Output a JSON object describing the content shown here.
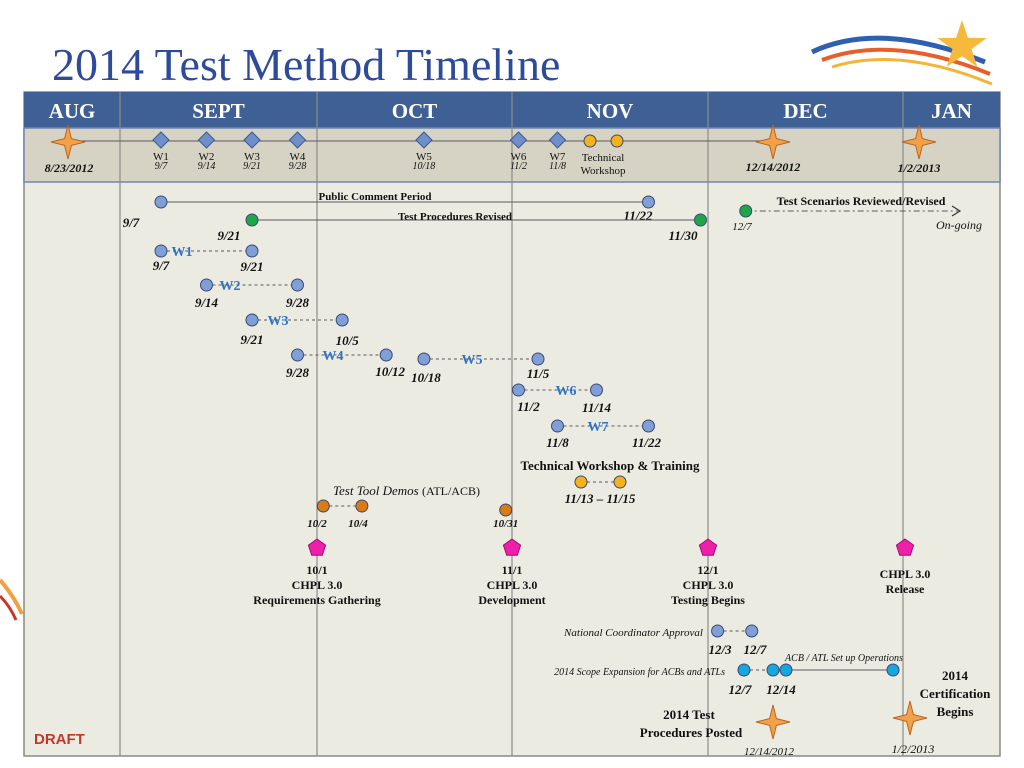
{
  "title": "2014 Test Method Timeline",
  "draft_label": "DRAFT",
  "colors": {
    "header_blue": "#3f6094",
    "panel_bg": "#ecebe2",
    "marker_blue": "#7f9fd6",
    "marker_green": "#1fa64a",
    "marker_orange": "#f5b21a",
    "marker_dark_orange": "#db7b14",
    "marker_magenta": "#ee1fa9",
    "marker_cyan": "#17a7e0",
    "label_blue": "#2f73c8"
  },
  "chart_data": {
    "type": "timeline",
    "months": [
      "AUG",
      "SEPT",
      "OCT",
      "NOV",
      "DEC",
      "JAN"
    ],
    "milestone_band": {
      "stars": [
        {
          "name": "star-start",
          "date": "8/23/2012"
        },
        {
          "name": "star-dec",
          "date": "12/14/2012"
        },
        {
          "name": "star-jan",
          "date": "1/2/2013"
        }
      ],
      "diamonds": [
        {
          "name": "W1",
          "date": "9/7"
        },
        {
          "name": "W2",
          "date": "9/14"
        },
        {
          "name": "W3",
          "date": "9/21"
        },
        {
          "name": "W4",
          "date": "9/28"
        },
        {
          "name": "W5",
          "date": "10/18"
        },
        {
          "name": "W6",
          "date": "11/2"
        },
        {
          "name": "W7",
          "date": "11/8"
        }
      ],
      "workshop_label": [
        "Technical",
        "Workshop"
      ]
    },
    "activities": [
      {
        "name": "Public Comment Period",
        "start": "9/7",
        "end": "11/22",
        "color": "blue",
        "label_style": "bold"
      },
      {
        "name": "Test Procedures Revised",
        "start": "9/21",
        "end": "11/30",
        "color": "green",
        "label_style": "bold"
      },
      {
        "name": "Test Scenarios Reviewed/Revised",
        "start": "12/7",
        "end": "On-going",
        "color": "green",
        "label_style": "bold"
      },
      {
        "name": "W1",
        "start": "9/7",
        "end": "9/21",
        "color": "blue",
        "label_style": "wave"
      },
      {
        "name": "W2",
        "start": "9/14",
        "end": "9/28",
        "color": "blue",
        "label_style": "wave"
      },
      {
        "name": "W3",
        "start": "9/21",
        "end": "10/5",
        "color": "blue",
        "label_style": "wave"
      },
      {
        "name": "W4",
        "start": "9/28",
        "end": "10/12",
        "color": "blue",
        "label_style": "wave"
      },
      {
        "name": "W5",
        "start": "10/18",
        "end": "11/5",
        "color": "blue",
        "label_style": "wave"
      },
      {
        "name": "W6",
        "start": "11/2",
        "end": "11/14",
        "color": "blue",
        "label_style": "wave"
      },
      {
        "name": "W7",
        "start": "11/8",
        "end": "11/22",
        "color": "blue",
        "label_style": "wave"
      },
      {
        "name": "Technical Workshop & Training",
        "start": "11/13",
        "end": "11/15",
        "color": "orange",
        "label_style": "bold",
        "date_text": "11/13 – 11/15"
      },
      {
        "name": "Test Tool Demos",
        "name_suffix": "(ATL/ACB)",
        "start": "10/2",
        "end": "10/4",
        "color": "dark-orange",
        "label_style": "italic"
      },
      {
        "name": "National Coordinator Approval",
        "start": "12/3",
        "end": "12/7",
        "color": "blue",
        "label_style": "italic"
      },
      {
        "name": "ACB / ATL Set up Operations",
        "start": "12/14",
        "end": "1/2",
        "color": "cyan",
        "label_style": "italic"
      },
      {
        "name": "2014 Scope Expansion for ACBs and ATLs",
        "start": "12/7",
        "end": "12/14",
        "color": "cyan",
        "label_style": "italic"
      }
    ],
    "single_points": [
      {
        "date": "10/31",
        "color": "dark-orange"
      }
    ],
    "chpl_milestones": [
      {
        "date": "10/1",
        "lines": [
          "10/1",
          "CHPL 3.0",
          "Requirements Gathering"
        ]
      },
      {
        "date": "11/1",
        "lines": [
          "11/1",
          "CHPL 3.0",
          "Development"
        ]
      },
      {
        "date": "12/1",
        "lines": [
          "12/1",
          "CHPL 3.0",
          "Testing Begins"
        ]
      },
      {
        "date": "1/1",
        "lines": [
          "CHPL 3.0",
          "Release"
        ]
      }
    ],
    "bottom_milestones": [
      {
        "date": "12/14/2012",
        "lines": [
          "2014 Test",
          "Procedures Posted"
        ]
      },
      {
        "date": "1/2/2013",
        "lines": [
          "2014",
          "Certification",
          "Begins"
        ]
      }
    ]
  }
}
